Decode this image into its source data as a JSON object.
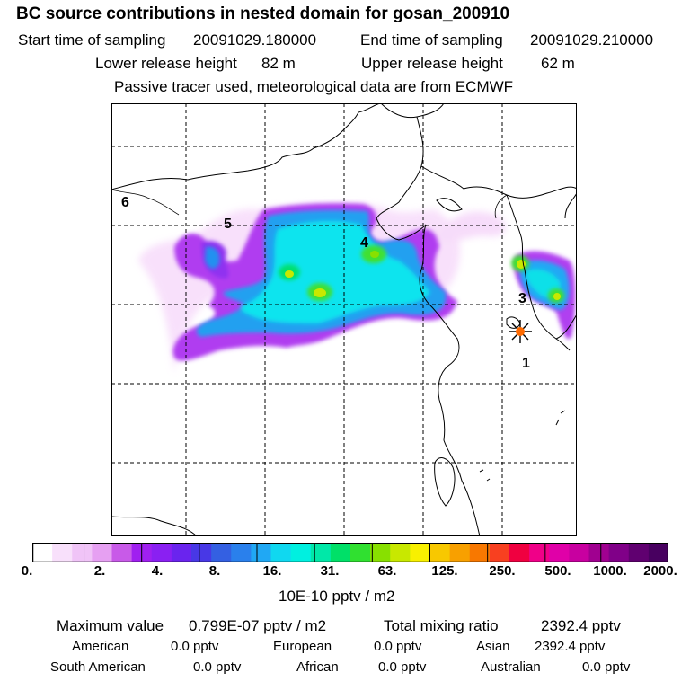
{
  "title": "BC  source contributions in nested domain for gosan_200910",
  "header": {
    "start_label": "Start time of sampling",
    "start_value": "20091029.180000",
    "end_label": "End time of sampling",
    "end_value": "20091029.210000",
    "lower_label": "Lower release height",
    "lower_value": "82 m",
    "upper_label": "Upper release height",
    "upper_value": "62 m",
    "tracer_note": "Passive tracer used, meteorological data are from ECMWF"
  },
  "map": {
    "region_labels": [
      "1",
      "3",
      "4",
      "5",
      "6"
    ],
    "receptor": "star-marker"
  },
  "colorbar": {
    "colors": [
      "#ffffff",
      "#f8e0fb",
      "#f0c4f7",
      "#e6a0f2",
      "#c85ae8",
      "#a020f0",
      "#8a20f2",
      "#6a24ee",
      "#4838e6",
      "#3460e2",
      "#2a80ec",
      "#20a8f4",
      "#10d8f0",
      "#00f0e0",
      "#00e8a8",
      "#00e068",
      "#30e030",
      "#88e000",
      "#c8e800",
      "#f8f000",
      "#f8c800",
      "#f8a000",
      "#f87800",
      "#f84020",
      "#f00040",
      "#f00088",
      "#e000a8",
      "#c800a0",
      "#a00090",
      "#800088",
      "#600070",
      "#480060"
    ],
    "tick_labels": [
      "0.",
      "2.",
      "4.",
      "8.",
      "16.",
      "31.",
      "63.",
      "125.",
      "250.",
      "500.",
      "1000.",
      "2000."
    ],
    "unit": "10E-10 pptv / m2"
  },
  "stats": {
    "max_label": "Maximum value",
    "max_value": "0.799E-07 pptv / m2",
    "total_label": "Total mixing ratio",
    "total_value": "2392.4 pptv",
    "regions": [
      {
        "name": "American",
        "value": "0.0 pptv"
      },
      {
        "name": "European",
        "value": "0.0 pptv"
      },
      {
        "name": "Asian",
        "value": "2392.4 pptv"
      },
      {
        "name": "South American",
        "value": "0.0 pptv"
      },
      {
        "name": "African",
        "value": "0.0 pptv"
      },
      {
        "name": "Australian",
        "value": "0.0 pptv"
      }
    ]
  }
}
